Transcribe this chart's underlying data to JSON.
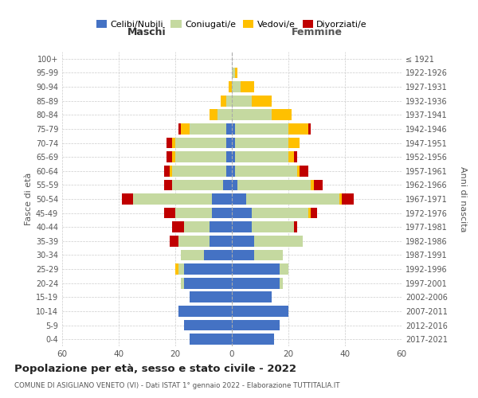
{
  "age_groups": [
    "0-4",
    "5-9",
    "10-14",
    "15-19",
    "20-24",
    "25-29",
    "30-34",
    "35-39",
    "40-44",
    "45-49",
    "50-54",
    "55-59",
    "60-64",
    "65-69",
    "70-74",
    "75-79",
    "80-84",
    "85-89",
    "90-94",
    "95-99",
    "100+"
  ],
  "birth_years": [
    "2017-2021",
    "2012-2016",
    "2007-2011",
    "2002-2006",
    "1997-2001",
    "1992-1996",
    "1987-1991",
    "1982-1986",
    "1977-1981",
    "1972-1976",
    "1967-1971",
    "1962-1966",
    "1957-1961",
    "1952-1956",
    "1947-1951",
    "1942-1946",
    "1937-1941",
    "1932-1936",
    "1927-1931",
    "1922-1926",
    "≤ 1921"
  ],
  "males": {
    "celibi": [
      15,
      17,
      19,
      15,
      17,
      17,
      10,
      8,
      8,
      7,
      7,
      3,
      2,
      2,
      2,
      2,
      0,
      0,
      0,
      0,
      0
    ],
    "coniugati": [
      0,
      0,
      0,
      0,
      1,
      2,
      8,
      11,
      9,
      13,
      28,
      18,
      19,
      18,
      18,
      13,
      5,
      2,
      0,
      0,
      0
    ],
    "vedovi": [
      0,
      0,
      0,
      0,
      0,
      1,
      0,
      0,
      0,
      0,
      0,
      0,
      1,
      1,
      1,
      3,
      3,
      2,
      1,
      0,
      0
    ],
    "divorziati": [
      0,
      0,
      0,
      0,
      0,
      0,
      0,
      3,
      4,
      4,
      4,
      3,
      2,
      2,
      2,
      1,
      0,
      0,
      0,
      0,
      0
    ]
  },
  "females": {
    "nubili": [
      15,
      17,
      20,
      14,
      17,
      17,
      8,
      8,
      7,
      7,
      5,
      2,
      1,
      1,
      1,
      1,
      0,
      0,
      0,
      0,
      0
    ],
    "coniugate": [
      0,
      0,
      0,
      0,
      1,
      3,
      10,
      17,
      15,
      20,
      33,
      26,
      22,
      19,
      19,
      19,
      14,
      7,
      3,
      1,
      0
    ],
    "vedove": [
      0,
      0,
      0,
      0,
      0,
      0,
      0,
      0,
      0,
      1,
      1,
      1,
      1,
      2,
      4,
      7,
      7,
      7,
      5,
      1,
      0
    ],
    "divorziate": [
      0,
      0,
      0,
      0,
      0,
      0,
      0,
      0,
      1,
      2,
      4,
      3,
      3,
      1,
      0,
      1,
      0,
      0,
      0,
      0,
      0
    ]
  },
  "colors": {
    "celibi": "#4472c4",
    "coniugati": "#c5d9a0",
    "vedovi": "#ffc000",
    "divorziati": "#c00000"
  },
  "xlim": 60,
  "title": "Popolazione per età, sesso e stato civile - 2022",
  "subtitle": "COMUNE DI ASIGLIANO VENETO (VI) - Dati ISTAT 1° gennaio 2022 - Elaborazione TUTTITALIA.IT",
  "xlabel_left": "Maschi",
  "xlabel_right": "Femmine",
  "ylabel_left": "Fasce di età",
  "ylabel_right": "Anni di nascita",
  "legend_labels": [
    "Celibi/Nubili",
    "Coniugati/e",
    "Vedovi/e",
    "Divorziati/e"
  ],
  "bg_color": "#ffffff",
  "grid_color": "#cccccc"
}
